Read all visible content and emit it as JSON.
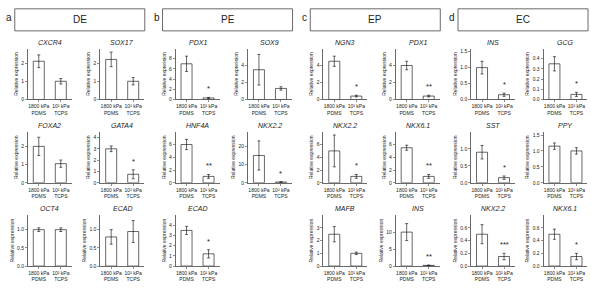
{
  "chart_data": [
    {
      "type": "panel",
      "annotations": [
        "a"
      ],
      "title": "DE",
      "charts": [
        {
          "type": "bar",
          "title": "CXCR4",
          "ylabel": "Relative expression",
          "categories": [
            "1800 kPa\nPDMS",
            "10² kPa\nTCPS"
          ],
          "values": [
            2.1,
            1.0
          ],
          "errors": [
            0.35,
            0.15
          ],
          "color": "#ffffff",
          "ylim": [
            0,
            2.8
          ],
          "yticks": [
            0,
            1,
            2
          ],
          "grid": false
        },
        {
          "type": "bar",
          "title": "SOX17",
          "ylabel": "Relative expression",
          "categories": [
            "1800 kPa\nPDMS",
            "10² kPa\nTCPS"
          ],
          "values": [
            2.2,
            1.0
          ],
          "errors": [
            0.4,
            0.2
          ],
          "color": "#ffffff",
          "ylim": [
            0,
            2.8
          ],
          "yticks": [
            0,
            1,
            2
          ],
          "grid": false
        },
        {
          "type": "bar",
          "title": "FOXA2",
          "ylabel": "Relative expression",
          "categories": [
            "1800 kPa\nPDMS",
            "10² kPa\nTCPS"
          ],
          "values": [
            2.0,
            1.05
          ],
          "errors": [
            0.5,
            0.2
          ],
          "color": "#ffffff",
          "ylim": [
            0,
            2.8
          ],
          "yticks": [
            0,
            1,
            2
          ],
          "grid": false
        },
        {
          "type": "bar",
          "title": "GATA4",
          "ylabel": "Relative expression",
          "categories": [
            "1800 kPa\nPDMS",
            "10² kPa\nTCPS"
          ],
          "values": [
            3.0,
            0.75
          ],
          "errors": [
            0.25,
            0.4
          ],
          "color": "#ffffff",
          "ylim": [
            0,
            4.5
          ],
          "yticks": [
            0,
            1,
            2,
            3,
            4
          ],
          "grid": false,
          "annotations": [
            {
              "text": "*",
              "x": "10² kPa\nTCPS"
            }
          ]
        },
        {
          "type": "bar",
          "title": "OCT4",
          "ylabel": "Relative expression",
          "categories": [
            "1800 kPa\nPDMS",
            "10² kPa\nTCPS"
          ],
          "values": [
            1.0,
            1.0
          ],
          "errors": [
            0.05,
            0.05
          ],
          "color": "#ffffff",
          "ylim": [
            0,
            1.4
          ],
          "yticks": [
            {
              "value": 0,
              "label": "0.0"
            },
            0.5,
            {
              "value": 1,
              "label": "1.0"
            }
          ],
          "grid": false
        },
        {
          "type": "bar",
          "title": "ECAD",
          "ylabel": "Relative expression",
          "categories": [
            "1800 kPa\nPDMS",
            "10² kPa\nTCPS"
          ],
          "values": [
            0.8,
            0.95
          ],
          "errors": [
            0.2,
            0.3
          ],
          "color": "#ffffff",
          "ylim": [
            0,
            1.4
          ],
          "yticks": [
            {
              "value": 0,
              "label": "0.0"
            },
            0.5,
            {
              "value": 1,
              "label": "1.0"
            }
          ],
          "grid": false
        }
      ]
    },
    {
      "type": "panel",
      "annotations": [
        "b"
      ],
      "title": "PE",
      "charts": [
        {
          "type": "bar",
          "title": "PDX1",
          "ylabel": "Relative expression",
          "categories": [
            "1800 kPa\nPDMS",
            "10² kPa\nTCPS"
          ],
          "values": [
            7.0,
            0.3
          ],
          "errors": [
            1.5,
            0.1
          ],
          "color": "#ffffff",
          "ylim": [
            0,
            10
          ],
          "yticks": [
            0,
            2,
            4,
            6,
            8
          ],
          "grid": false,
          "annotations": [
            {
              "text": "*",
              "x": "10² kPa\nTCPS"
            }
          ]
        },
        {
          "type": "bar",
          "title": "SOX9",
          "ylabel": "Relative expression",
          "categories": [
            "1800 kPa\nPDMS",
            "10² kPa\nTCPS"
          ],
          "values": [
            3.5,
            1.3
          ],
          "errors": [
            1.8,
            0.2
          ],
          "color": "#ffffff",
          "ylim": [
            0,
            6
          ],
          "yticks": [
            0,
            2,
            4
          ],
          "grid": false
        },
        {
          "type": "bar",
          "title": "HNF4A",
          "ylabel": "Relative expression",
          "categories": [
            "1800 kPa\nPDMS",
            "10² kPa\nTCPS"
          ],
          "values": [
            6.0,
            1.0
          ],
          "errors": [
            0.8,
            0.3
          ],
          "color": "#ffffff",
          "ylim": [
            0,
            8
          ],
          "yticks": [
            0,
            2,
            4,
            6
          ],
          "grid": false,
          "annotations": [
            {
              "text": "**",
              "x": "10² kPa\nTCPS"
            }
          ]
        },
        {
          "type": "bar",
          "title": "NKX2.2",
          "ylabel": "Relative expression",
          "categories": [
            "1800 kPa\nPDMS",
            "10² kPa\nTCPS"
          ],
          "values": [
            15.0,
            0.4
          ],
          "errors": [
            8.0,
            0.2
          ],
          "color": "#ffffff",
          "ylim": [
            0,
            28
          ],
          "yticks": [
            0,
            10,
            20
          ],
          "grid": false,
          "annotations": [
            {
              "text": "*",
              "x": "10² kPa\nTCPS"
            }
          ]
        },
        {
          "type": "bar",
          "title": "ECAD",
          "ylabel": "Relative expression",
          "categories": [
            "1800 kPa\nPDMS",
            "10² kPa\nTCPS"
          ],
          "values": [
            3.5,
            1.2
          ],
          "errors": [
            0.4,
            0.4
          ],
          "color": "#ffffff",
          "ylim": [
            0,
            5
          ],
          "yticks": [
            0,
            1,
            2,
            3,
            4
          ],
          "grid": false,
          "annotations": [
            {
              "text": "*",
              "x": "10² kPa\nTCPS"
            }
          ]
        }
      ]
    },
    {
      "type": "panel",
      "annotations": [
        "c"
      ],
      "title": "EP",
      "charts": [
        {
          "type": "bar",
          "title": "NGN3",
          "ylabel": "Relative expression",
          "categories": [
            "1800 kPa\nPDMS",
            "10² kPa\nTCPS"
          ],
          "values": [
            4.5,
            0.4
          ],
          "errors": [
            0.6,
            0.1
          ],
          "color": "#ffffff",
          "ylim": [
            0,
            6
          ],
          "yticks": [
            0,
            2,
            4
          ],
          "grid": false,
          "annotations": [
            {
              "text": "*",
              "x": "10² kPa\nTCPS"
            }
          ]
        },
        {
          "type": "bar",
          "title": "PDX1",
          "ylabel": "Relative expression",
          "categories": [
            "1800 kPa\nPDMS",
            "10² kPa\nTCPS"
          ],
          "values": [
            4.0,
            0.4
          ],
          "errors": [
            0.5,
            0.1
          ],
          "color": "#ffffff",
          "ylim": [
            0,
            6
          ],
          "yticks": [
            0,
            2,
            4
          ],
          "grid": false,
          "annotations": [
            {
              "text": "**",
              "x": "10² kPa\nTCPS"
            }
          ]
        },
        {
          "type": "bar",
          "title": "NKX2.2",
          "ylabel": "Relative expression",
          "categories": [
            "1800 kPa\nPDMS",
            "10² kPa\nTCPS"
          ],
          "values": [
            5.0,
            1.0
          ],
          "errors": [
            2.5,
            0.3
          ],
          "color": "#ffffff",
          "ylim": [
            0,
            8
          ],
          "yticks": [
            0,
            2,
            4,
            6
          ],
          "grid": false,
          "annotations": [
            {
              "text": "*",
              "x": "10² kPa\nTCPS"
            }
          ]
        },
        {
          "type": "bar",
          "title": "NKX6.1",
          "ylabel": "Relative expression",
          "categories": [
            "1800 kPa\nPDMS",
            "10² kPa\nTCPS"
          ],
          "values": [
            5.5,
            1.0
          ],
          "errors": [
            0.4,
            0.3
          ],
          "color": "#ffffff",
          "ylim": [
            0,
            8
          ],
          "yticks": [
            0,
            2,
            4,
            6
          ],
          "grid": false,
          "annotations": [
            {
              "text": "**",
              "x": "10² kPa\nTCPS"
            }
          ]
        },
        {
          "type": "bar",
          "title": "MAFB",
          "ylabel": "Relative expression",
          "categories": [
            "1800 kPa\nPDMS",
            "10² kPa\nTCPS"
          ],
          "values": [
            2.5,
            1.0
          ],
          "errors": [
            0.6,
            0.1
          ],
          "color": "#ffffff",
          "ylim": [
            0,
            4
          ],
          "yticks": [
            0,
            1,
            2,
            3
          ],
          "grid": false
        },
        {
          "type": "bar",
          "title": "INS",
          "ylabel": "Relative expression",
          "categories": [
            "1800 kPa\nPDMS",
            "10² kPa\nTCPS"
          ],
          "values": [
            10.0,
            0.2
          ],
          "errors": [
            2.5,
            0.1
          ],
          "color": "#ffffff",
          "ylim": [
            0,
            15
          ],
          "yticks": [
            0,
            5,
            10
          ],
          "grid": false,
          "annotations": [
            {
              "text": "**",
              "x": "10² kPa\nTCPS"
            }
          ]
        }
      ]
    },
    {
      "type": "panel",
      "annotations": [
        "d"
      ],
      "title": "EC",
      "charts": [
        {
          "type": "bar",
          "title": "INS",
          "ylabel": "Relative expression",
          "categories": [
            "1800 kPa\nPDMS",
            "10² kPa\nTCPS"
          ],
          "values": [
            1.0,
            0.15
          ],
          "errors": [
            0.2,
            0.05
          ],
          "color": "#ffffff",
          "ylim": [
            0,
            1.6
          ],
          "yticks": [
            {
              "value": 0,
              "label": "0.0"
            },
            0.5,
            {
              "value": 1,
              "label": "1.0"
            },
            1.5
          ],
          "grid": false,
          "annotations": [
            {
              "text": "*",
              "x": "10² kPa\nTCPS"
            }
          ]
        },
        {
          "type": "bar",
          "title": "GCG",
          "ylabel": "Relative expression",
          "categories": [
            "1800 kPa\nPDMS",
            "10² kPa\nTCPS"
          ],
          "values": [
            0.35,
            0.05
          ],
          "errors": [
            0.07,
            0.02
          ],
          "color": "#ffffff",
          "ylim": [
            0,
            0.5
          ],
          "yticks": [
            {
              "value": 0,
              "label": "0.0"
            },
            0.1,
            0.2,
            0.3,
            0.4
          ],
          "grid": false,
          "annotations": [
            {
              "text": "*",
              "x": "10² kPa\nTCPS"
            }
          ]
        },
        {
          "type": "bar",
          "title": "SST",
          "ylabel": "Relative expression",
          "categories": [
            "1800 kPa\nPDMS",
            "10² kPa\nTCPS"
          ],
          "values": [
            0.9,
            0.15
          ],
          "errors": [
            0.2,
            0.05
          ],
          "color": "#ffffff",
          "ylim": [
            0,
            1.5
          ],
          "yticks": [
            {
              "value": 0,
              "label": "0.0"
            },
            0.5,
            {
              "value": 1,
              "label": "1.0"
            }
          ],
          "grid": false,
          "annotations": [
            {
              "text": "*",
              "x": "10² kPa\nTCPS"
            }
          ]
        },
        {
          "type": "bar",
          "title": "PPY",
          "ylabel": "Relative expression",
          "categories": [
            "1800 kPa\nPDMS",
            "10² kPa\nTCPS"
          ],
          "values": [
            1.15,
            1.0
          ],
          "errors": [
            0.1,
            0.1
          ],
          "color": "#ffffff",
          "ylim": [
            0,
            1.6
          ],
          "yticks": [
            {
              "value": 0,
              "label": "0.0"
            },
            0.5,
            {
              "value": 1,
              "label": "1.0"
            },
            1.5
          ],
          "grid": false
        },
        {
          "type": "bar",
          "title": "NKX2.2",
          "ylabel": "Relative expression",
          "categories": [
            "1800 kPa\nPDMS",
            "10² kPa\nTCPS"
          ],
          "values": [
            0.5,
            0.15
          ],
          "errors": [
            0.15,
            0.05
          ],
          "color": "#ffffff",
          "ylim": [
            0,
            0.8
          ],
          "yticks": [
            {
              "value": 0,
              "label": "0.0"
            },
            0.2,
            0.4,
            0.6
          ],
          "grid": false,
          "annotations": [
            {
              "text": "***",
              "x": "10² kPa\nTCPS"
            }
          ]
        },
        {
          "type": "bar",
          "title": "NKX6.1",
          "ylabel": "Relative expression",
          "categories": [
            "1800 kPa\nPDMS",
            "10² kPa\nTCPS"
          ],
          "values": [
            0.5,
            0.15
          ],
          "errors": [
            0.08,
            0.05
          ],
          "color": "#ffffff",
          "ylim": [
            0,
            0.8
          ],
          "yticks": [
            {
              "value": 0,
              "label": "0.0"
            },
            0.2,
            0.4,
            0.6
          ],
          "grid": false,
          "annotations": [
            {
              "text": "*",
              "x": "10² kPa\nTCPS"
            }
          ]
        }
      ]
    }
  ]
}
